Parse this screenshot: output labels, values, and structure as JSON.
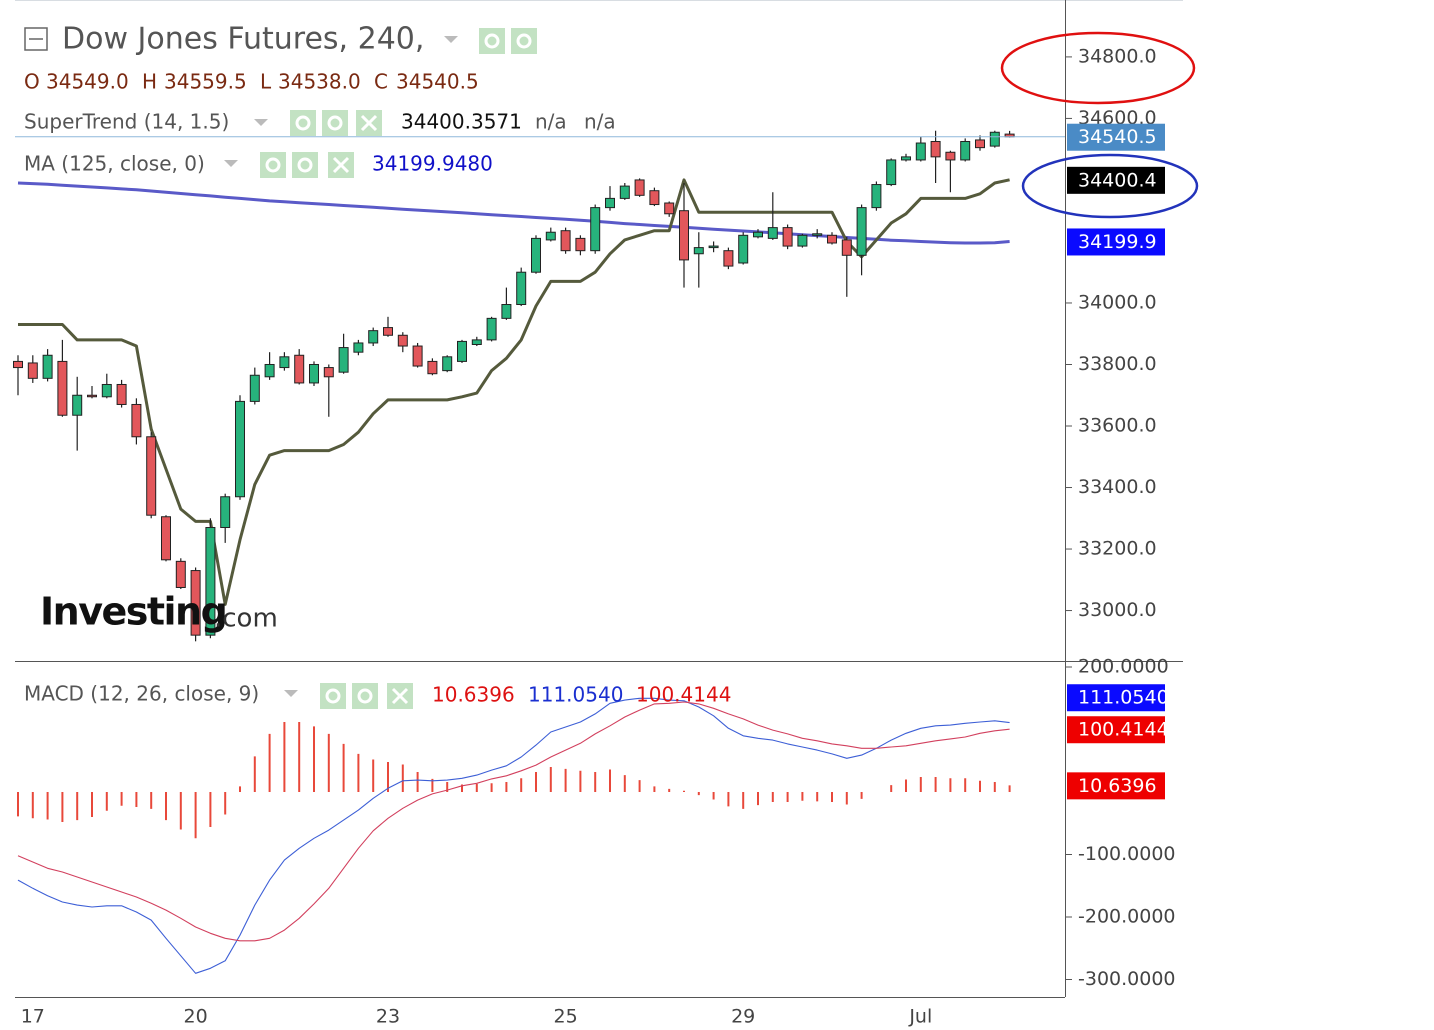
{
  "header": {
    "title": "Dow Jones Futures, 240,",
    "ohlc": [
      {
        "key": "O",
        "value": "34549.0"
      },
      {
        "key": "H",
        "value": "34559.5"
      },
      {
        "key": "L",
        "value": "34538.0"
      },
      {
        "key": "C",
        "value": "34540.5"
      }
    ]
  },
  "watermark": [
    "Investing",
    ".com"
  ],
  "chart_data": [
    {
      "type": "candlestick",
      "categories": [
        null,
        "17",
        null,
        null,
        null,
        null,
        null,
        null,
        null,
        null,
        null,
        null,
        "20",
        null,
        null,
        null,
        null,
        null,
        null,
        null,
        null,
        null,
        null,
        null,
        null,
        "23",
        null,
        null,
        null,
        null,
        null,
        null,
        null,
        null,
        null,
        null,
        null,
        "25",
        null,
        null,
        null,
        null,
        null,
        null,
        null,
        null,
        null,
        null,
        null,
        "29",
        null,
        null,
        null,
        null,
        null,
        null,
        null,
        null,
        null,
        null,
        null,
        "Jul",
        null,
        null,
        null,
        null,
        null,
        null
      ],
      "open": [
        33810,
        33805,
        33755,
        33810,
        33635,
        33700,
        33695,
        33735,
        33670,
        33565,
        33305,
        33160,
        33130,
        32920,
        33270,
        33370,
        33680,
        33760,
        33790,
        33830,
        33740,
        33790,
        33775,
        33840,
        33870,
        33920,
        33895,
        33860,
        33810,
        33780,
        33810,
        33865,
        33880,
        33950,
        33995,
        34100,
        34205,
        34235,
        34210,
        34170,
        34310,
        34340,
        34400,
        34365,
        34325,
        34300,
        34160,
        34180,
        34170,
        34130,
        34215,
        34210,
        34245,
        34185,
        34220,
        34220,
        34205,
        34155,
        34310,
        34385,
        34465,
        34465,
        34525,
        34490,
        34465,
        34530,
        34510,
        34549
      ],
      "high": [
        33830,
        33830,
        33850,
        33880,
        33760,
        33730,
        33770,
        33750,
        33690,
        33580,
        33310,
        33170,
        33140,
        33300,
        33380,
        33700,
        33790,
        33840,
        33840,
        33850,
        33810,
        33800,
        33900,
        33880,
        33920,
        33955,
        33905,
        33870,
        33820,
        33830,
        33880,
        33890,
        33955,
        34050,
        34115,
        34220,
        34245,
        34245,
        34220,
        34320,
        34380,
        34390,
        34405,
        34375,
        34330,
        34390,
        34230,
        34200,
        34180,
        34230,
        34240,
        34360,
        34255,
        34225,
        34240,
        34230,
        34215,
        34320,
        34395,
        34470,
        34485,
        34540,
        34560,
        34495,
        34535,
        34545,
        34560,
        34559.5
      ],
      "low": [
        33700,
        33740,
        33745,
        33630,
        33520,
        33690,
        33690,
        33660,
        33540,
        33300,
        33160,
        33070,
        32900,
        32910,
        33220,
        33360,
        33670,
        33750,
        33780,
        33735,
        33730,
        33630,
        33770,
        33830,
        33860,
        33890,
        33840,
        33790,
        33765,
        33775,
        33805,
        33860,
        33875,
        33945,
        33990,
        34095,
        34200,
        34160,
        34155,
        34160,
        34300,
        34335,
        34345,
        34315,
        34280,
        34050,
        34050,
        34165,
        34110,
        34125,
        34210,
        34205,
        34175,
        34180,
        34210,
        34190,
        34020,
        34090,
        34300,
        34380,
        34460,
        34460,
        34390,
        34360,
        34460,
        34495,
        34505,
        34538
      ],
      "close": [
        33790,
        33755,
        33830,
        33635,
        33700,
        33697,
        33735,
        33670,
        33565,
        33310,
        33165,
        33075,
        32920,
        33270,
        33370,
        33680,
        33765,
        33800,
        33825,
        33740,
        33800,
        33760,
        33855,
        33870,
        33910,
        33895,
        33860,
        33795,
        33770,
        33825,
        33875,
        33880,
        33950,
        33995,
        34100,
        34210,
        34230,
        34170,
        34170,
        34310,
        34340,
        34380,
        34350,
        34320,
        34290,
        34140,
        34180,
        34185,
        34120,
        34220,
        34230,
        34245,
        34185,
        34220,
        34225,
        34195,
        34155,
        34310,
        34385,
        34465,
        34475,
        34520,
        34475,
        34465,
        34525,
        34505,
        34555,
        34540.5
      ],
      "up_color": "#27b37c",
      "down_color": "#e2575b",
      "price_line_color": "#8fb8dc",
      "price_label_color": "#4a8bc6",
      "ylim": [
        32836,
        34985
      ],
      "yticks": [
        {
          "value": 33000,
          "label": "33000.0"
        },
        {
          "value": 33200,
          "label": "33200.0"
        },
        {
          "value": 33400,
          "label": "33400.0"
        },
        {
          "value": 33600,
          "label": "33600.0"
        },
        {
          "value": 33800,
          "label": "33800.0"
        },
        {
          "value": 34000,
          "label": "34000.0"
        },
        {
          "value": 34600,
          "label": "34600.0"
        },
        {
          "value": 34800,
          "label": "34800.0"
        }
      ],
      "series": [
        {
          "name": "SuperTrend (14, 1.5)",
          "color": "#555a3c",
          "values": [
            33930,
            33930,
            33930,
            33930,
            33880,
            33880,
            33880,
            33880,
            33860,
            33590,
            33460,
            33330,
            33290,
            33290,
            33020,
            33230,
            33410,
            33505,
            33520,
            33520,
            33520,
            33520,
            33540,
            33580,
            33640,
            33685,
            33685,
            33685,
            33685,
            33685,
            33695,
            33707,
            33780,
            33820,
            33880,
            33990,
            34070,
            34070,
            34070,
            34100,
            34160,
            34205,
            34220,
            34235,
            34235,
            34400,
            34295,
            34295,
            34295,
            34295,
            34295,
            34295,
            34295,
            34295,
            34295,
            34295,
            34200,
            34150,
            34205,
            34260,
            34290,
            34340,
            34340,
            34340,
            34340,
            34355,
            34390,
            34400.3571
          ],
          "legend_value": "34400.3571",
          "legend_extra": [
            "n/a",
            "n/a"
          ],
          "last_label": "34400.4",
          "label_color": "#000000"
        },
        {
          "name": "MA (125, close, 0)",
          "color": "#5a5ac8",
          "values": [
            34390,
            34388,
            34386,
            34383,
            34380,
            34377,
            34374,
            34371,
            34368,
            34364,
            34360,
            34356,
            34352,
            34348,
            34344,
            34340,
            34336,
            34332,
            34329,
            34326,
            34323,
            34320,
            34317,
            34314,
            34311,
            34308,
            34305,
            34302,
            34299,
            34296,
            34293,
            34290,
            34287,
            34284,
            34281,
            34278,
            34275,
            34272,
            34269,
            34266,
            34262,
            34258,
            34255,
            34252,
            34249,
            34246,
            34243,
            34240,
            34237,
            34234,
            34231,
            34228,
            34225,
            34222,
            34219,
            34216,
            34213,
            34210,
            34207,
            34204,
            34202,
            34200,
            34198,
            34196,
            34195,
            34195,
            34196,
            34199.948
          ],
          "legend_value": "34199.9480",
          "last_label": "34199.9",
          "label_color": "#0a0aff"
        }
      ]
    },
    {
      "type": "macd",
      "name": "MACD (12, 26, close, 9)",
      "ylim": [
        -328,
        208
      ],
      "yticks": [
        {
          "value": 200,
          "label": "200.0000"
        },
        {
          "value": -100,
          "label": "-100.0000"
        },
        {
          "value": -200,
          "label": "-200.0000"
        },
        {
          "value": -300,
          "label": "-300.0000"
        }
      ],
      "series": [
        {
          "style": "histogram",
          "color": "#e8483a",
          "values": [
            -39,
            -42,
            -44,
            -48,
            -45,
            -40,
            -30,
            -22,
            -24,
            -27,
            -45,
            -60,
            -74,
            -56,
            -36,
            9,
            57,
            93,
            112,
            112,
            105,
            93,
            77,
            61,
            52,
            48,
            44,
            32,
            21,
            16,
            12,
            13,
            14,
            16,
            22,
            32,
            40,
            37,
            34,
            32,
            36,
            27,
            19,
            9,
            5,
            2,
            -5,
            -12,
            -23,
            -27,
            -21,
            -16,
            -16,
            -14,
            -15,
            -16,
            -20,
            -11,
            0,
            11,
            20,
            24,
            24,
            22,
            22,
            18,
            16,
            10.6396
          ],
          "legend_value": "10.6396",
          "legend_color": "#dd1111",
          "last_label": "10.6396",
          "label_color": "#ee0000"
        },
        {
          "style": "line",
          "color": "#3d5fd6",
          "values": [
            -141,
            -154,
            -166,
            -176,
            -181,
            -184,
            -182,
            -182,
            -192,
            -205,
            -234,
            -262,
            -290,
            -282,
            -270,
            -229,
            -181,
            -141,
            -109,
            -90,
            -74,
            -61,
            -45,
            -29,
            -10,
            6,
            18,
            19,
            18,
            19,
            22,
            27,
            35,
            42,
            56,
            75,
            96,
            104,
            112,
            125,
            142,
            147,
            150,
            150,
            147,
            146,
            136,
            122,
            102,
            90,
            86,
            83,
            77,
            72,
            67,
            61,
            54,
            59,
            70,
            83,
            94,
            102,
            106,
            107,
            110,
            112,
            114,
            111.054
          ],
          "legend_value": "111.0540",
          "legend_color": "#1a2fd0",
          "last_label": "111.0540",
          "label_color": "#0a0aff"
        },
        {
          "style": "line",
          "color": "#d2405e",
          "values": [
            -102,
            -112,
            -122,
            -128,
            -136,
            -144,
            -152,
            -160,
            -168,
            -178,
            -189,
            -202,
            -216,
            -226,
            -234,
            -238,
            -238,
            -234,
            -221,
            -202,
            -179,
            -154,
            -122,
            -90,
            -62,
            -42,
            -26,
            -13,
            -3,
            3,
            10,
            14,
            21,
            26,
            34,
            43,
            56,
            67,
            78,
            93,
            106,
            120,
            131,
            141,
            142,
            144,
            141,
            134,
            125,
            117,
            107,
            99,
            93,
            86,
            82,
            77,
            74,
            70,
            70,
            72,
            74,
            78,
            82,
            85,
            88,
            94,
            98,
            100.4144
          ],
          "legend_value": "100.4144",
          "legend_color": "#dd1111",
          "last_label": "100.4144",
          "label_color": "#ee0000"
        }
      ]
    }
  ]
}
